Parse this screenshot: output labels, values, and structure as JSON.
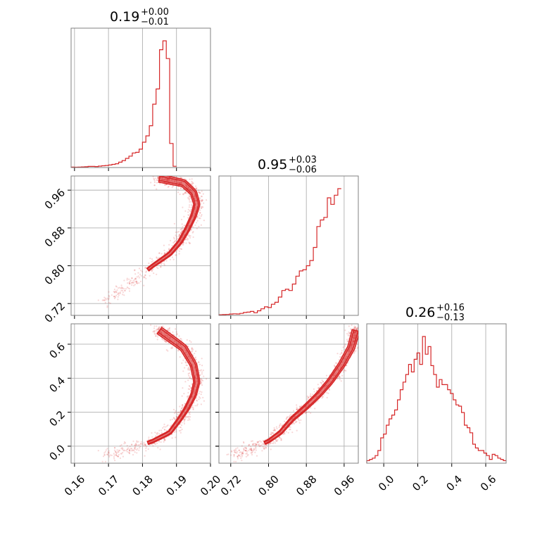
{
  "chart_data": {
    "type": "corner",
    "color": "#d62728",
    "parameters": [
      {
        "ticks": [
          "0.16",
          "0.17",
          "0.18",
          "0.19",
          "0.20"
        ],
        "tick_values": [
          0.16,
          0.17,
          0.18,
          0.19,
          0.2
        ],
        "range": [
          0.159,
          0.2
        ],
        "title": {
          "value": "0.19",
          "plus": "+0.00",
          "minus": "−0.01"
        },
        "histogram": {
          "edges_start": 0.159,
          "bin_width": 0.001,
          "values": [
            0.004,
            0.003,
            0.004,
            0.005,
            0.006,
            0.009,
            0.009,
            0.008,
            0.011,
            0.014,
            0.016,
            0.02,
            0.025,
            0.03,
            0.042,
            0.055,
            0.072,
            0.09,
            0.115,
            0.12,
            0.145,
            0.2,
            0.25,
            0.33,
            0.5,
            0.62,
            0.93,
            1.0,
            0.86,
            0.19,
            0.01
          ]
        }
      },
      {
        "ticks": [
          "0.72",
          "0.80",
          "0.88",
          "0.96"
        ],
        "tick_values": [
          0.72,
          0.8,
          0.88,
          0.96
        ],
        "range": [
          0.695,
          0.99
        ],
        "title": {
          "value": "0.95",
          "plus": "+0.03",
          "minus": "−0.06"
        },
        "histogram": {
          "edges_start": 0.695,
          "bin_width": 0.0074,
          "values": [
            0.005,
            0.006,
            0.007,
            0.01,
            0.012,
            0.011,
            0.015,
            0.022,
            0.025,
            0.03,
            0.02,
            0.035,
            0.05,
            0.065,
            0.06,
            0.085,
            0.1,
            0.14,
            0.19,
            0.2,
            0.19,
            0.24,
            0.3,
            0.34,
            0.35,
            0.38,
            0.42,
            0.52,
            0.68,
            0.73,
            0.75,
            0.9,
            0.85,
            0.92,
            0.97
          ]
        }
      },
      {
        "ticks": [
          "0.0",
          "0.2",
          "0.4",
          "0.6"
        ],
        "tick_values": [
          0.0,
          0.2,
          0.4,
          0.6
        ],
        "range": [
          -0.1,
          0.72
        ],
        "title": {
          "value": "0.26",
          "plus": "+0.16",
          "minus": "−0.13"
        },
        "histogram": {
          "edges_start": -0.1,
          "bin_width": 0.0164,
          "values": [
            0.02,
            0.03,
            0.04,
            0.06,
            0.1,
            0.2,
            0.23,
            0.3,
            0.35,
            0.38,
            0.42,
            0.5,
            0.58,
            0.64,
            0.7,
            0.78,
            0.72,
            0.82,
            0.87,
            0.78,
            1.0,
            0.86,
            0.92,
            0.77,
            0.7,
            0.6,
            0.66,
            0.62,
            0.62,
            0.58,
            0.55,
            0.5,
            0.46,
            0.45,
            0.4,
            0.3,
            0.28,
            0.24,
            0.15,
            0.12,
            0.1,
            0.1,
            0.08,
            0.06,
            0.03,
            0.07,
            0.06,
            0.04,
            0.03,
            0.02
          ]
        }
      }
    ],
    "curve": {
      "description": "posterior samples lie along a curved ridge",
      "ridge": [
        {
          "p0": 0.185,
          "p1": 0.985,
          "p2": 0.68
        },
        {
          "p0": 0.192,
          "p1": 0.975,
          "p2": 0.58
        },
        {
          "p0": 0.195,
          "p1": 0.955,
          "p2": 0.48
        },
        {
          "p0": 0.196,
          "p1": 0.93,
          "p2": 0.38
        },
        {
          "p0": 0.195,
          "p1": 0.905,
          "p2": 0.3
        },
        {
          "p0": 0.193,
          "p1": 0.875,
          "p2": 0.22
        },
        {
          "p0": 0.191,
          "p1": 0.85,
          "p2": 0.16
        },
        {
          "p0": 0.188,
          "p1": 0.825,
          "p2": 0.08
        },
        {
          "p0": 0.183,
          "p1": 0.8,
          "p2": 0.03
        },
        {
          "p0": 0.176,
          "p1": 0.76,
          "p2": -0.02
        },
        {
          "p0": 0.168,
          "p1": 0.72,
          "p2": -0.06
        }
      ]
    }
  }
}
